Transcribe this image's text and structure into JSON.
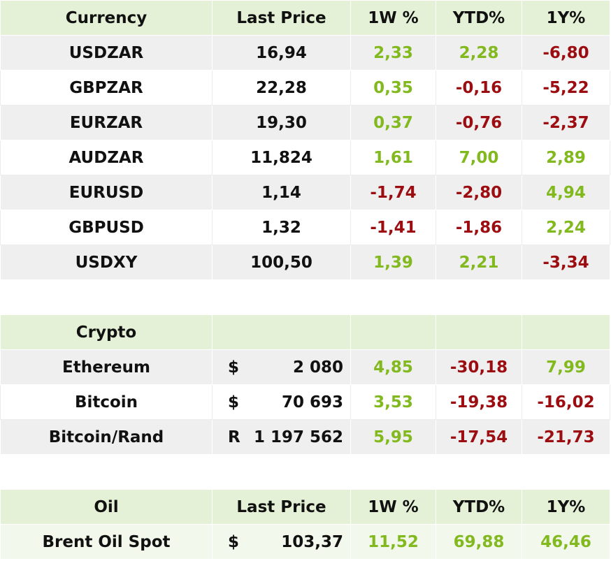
{
  "headers": {
    "currency": "Currency",
    "last_price": "Last Price",
    "w1": "1W %",
    "ytd": "YTD%",
    "y1": "1Y%"
  },
  "currency_rows": [
    {
      "name": "USDZAR",
      "price": "16,94",
      "w1": "2,33",
      "ytd": "2,28",
      "y1": "-6,80"
    },
    {
      "name": "GBPZAR",
      "price": "22,28",
      "w1": "0,35",
      "ytd": "-0,16",
      "y1": "-5,22"
    },
    {
      "name": "EURZAR",
      "price": "19,30",
      "w1": "0,37",
      "ytd": "-0,76",
      "y1": "-2,37"
    },
    {
      "name": "AUDZAR",
      "price": "11,824",
      "w1": "1,61",
      "ytd": "7,00",
      "y1": "2,89"
    },
    {
      "name": "EURUSD",
      "price": "1,14",
      "w1": "-1,74",
      "ytd": "-2,80",
      "y1": "4,94"
    },
    {
      "name": "GBPUSD",
      "price": "1,32",
      "w1": "-1,41",
      "ytd": "-1,86",
      "y1": "2,24"
    },
    {
      "name": "USDXY",
      "price": "100,50",
      "w1": "1,39",
      "ytd": "2,21",
      "y1": "-3,34"
    }
  ],
  "crypto": {
    "title": "Crypto",
    "rows": [
      {
        "name": "Ethereum",
        "cur": "$",
        "price": "2 080",
        "w1": "4,85",
        "ytd": "-30,18",
        "y1": "7,99"
      },
      {
        "name": "Bitcoin",
        "cur": "$",
        "price": "70 693",
        "w1": "3,53",
        "ytd": "-19,38",
        "y1": "-16,02"
      },
      {
        "name": "Bitcoin/Rand",
        "cur": "R",
        "price": "1 197 562",
        "w1": "5,95",
        "ytd": "-17,54",
        "y1": "-21,73"
      }
    ]
  },
  "oil": {
    "headers": {
      "name": "Oil",
      "last_price": "Last Price",
      "w1": "1W %",
      "ytd": "YTD%",
      "y1": "1Y%"
    },
    "rows": [
      {
        "name": "Brent Oil Spot",
        "cur": "$",
        "price": "103,37",
        "w1": "11,52",
        "ytd": "69,88",
        "y1": "46,46"
      }
    ]
  },
  "colors": {
    "positive": "#82b91e",
    "negative": "#9c0d12",
    "header_bg": "#e4f1d6",
    "stripe_bg": "#efefef"
  }
}
